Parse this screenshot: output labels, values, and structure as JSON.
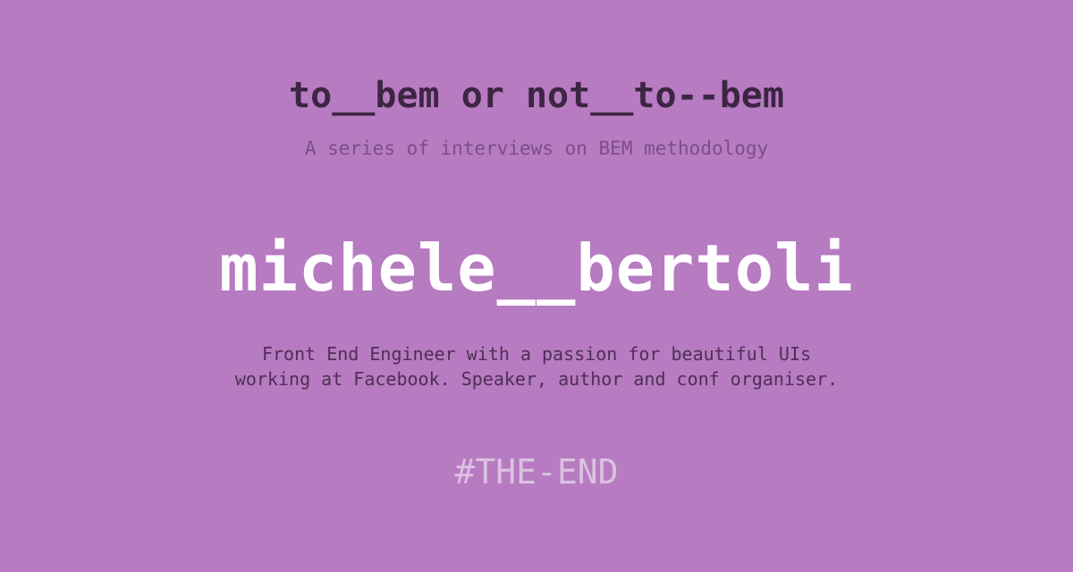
{
  "header": {
    "title": "to__bem or not__to--bem",
    "subtitle": "A series of interviews on BEM methodology"
  },
  "interview": {
    "name": "michele__bertoli",
    "bio_lines": [
      "Front End Engineer with a passion for beautiful UIs",
      "working at Facebook. Speaker, author and conf organiser."
    ]
  },
  "footer": {
    "end_tag": "#THE-END"
  },
  "colors": {
    "background": "#b77bc1",
    "title": "#3d2544",
    "subtitle": "#7a4f83",
    "name": "#ffffff",
    "bio": "#4e2f55",
    "end_tag": "#dcc1e2"
  }
}
